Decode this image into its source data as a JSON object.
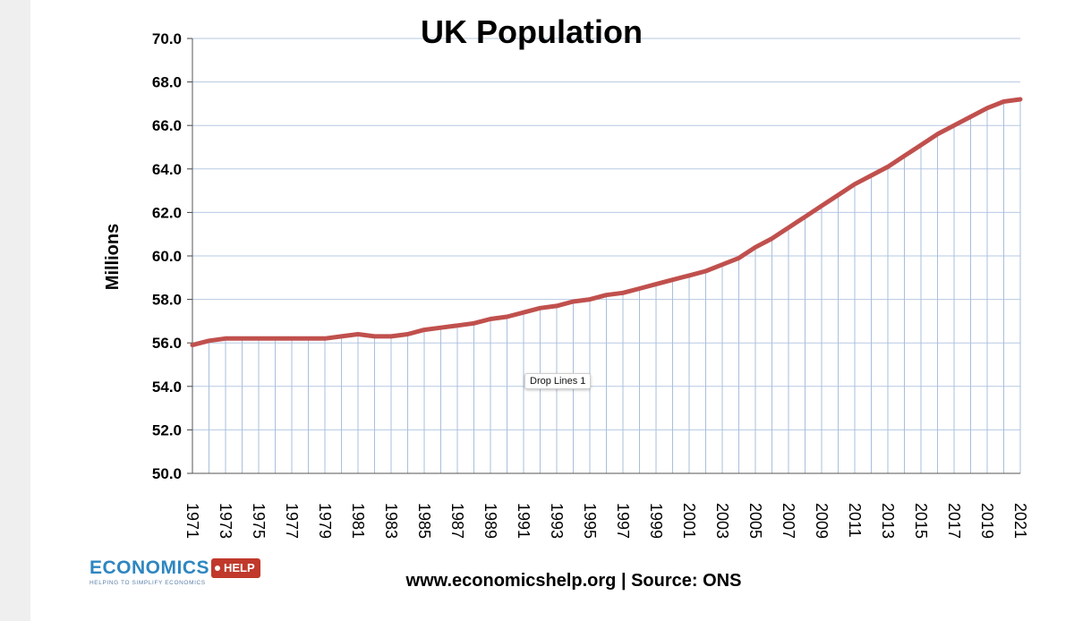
{
  "chart_data": {
    "type": "area",
    "title": "UK Population",
    "ylabel": "Millions",
    "xlabel": "",
    "ylim": [
      50,
      70
    ],
    "yticks": [
      "50.0",
      "52.0",
      "54.0",
      "56.0",
      "58.0",
      "60.0",
      "62.0",
      "64.0",
      "66.0",
      "68.0",
      "70.0"
    ],
    "x": [
      1971,
      1972,
      1973,
      1974,
      1975,
      1976,
      1977,
      1978,
      1979,
      1980,
      1981,
      1982,
      1983,
      1984,
      1985,
      1986,
      1987,
      1988,
      1989,
      1990,
      1991,
      1992,
      1993,
      1994,
      1995,
      1996,
      1997,
      1998,
      1999,
      2000,
      2001,
      2002,
      2003,
      2004,
      2005,
      2006,
      2007,
      2008,
      2009,
      2010,
      2011,
      2012,
      2013,
      2014,
      2015,
      2016,
      2017,
      2018,
      2019,
      2020,
      2021
    ],
    "xticks": [
      "1971",
      "1973",
      "1975",
      "1977",
      "1979",
      "1981",
      "1983",
      "1985",
      "1987",
      "1989",
      "1991",
      "1993",
      "1995",
      "1997",
      "1999",
      "2001",
      "2003",
      "2005",
      "2007",
      "2009",
      "2011",
      "2013",
      "2015",
      "2017",
      "2019",
      "2021"
    ],
    "series": [
      {
        "values": [
          55.9,
          56.1,
          56.2,
          56.2,
          56.2,
          56.2,
          56.2,
          56.2,
          56.2,
          56.3,
          56.4,
          56.3,
          56.3,
          56.4,
          56.6,
          56.7,
          56.8,
          56.9,
          57.1,
          57.2,
          57.4,
          57.6,
          57.7,
          57.9,
          58.0,
          58.2,
          58.3,
          58.5,
          58.7,
          58.9,
          59.1,
          59.3,
          59.6,
          59.9,
          60.4,
          60.8,
          61.3,
          61.8,
          62.3,
          62.8,
          63.3,
          63.7,
          64.1,
          64.6,
          65.1,
          65.6,
          66.0,
          66.4,
          66.8,
          67.1,
          67.2
        ]
      }
    ],
    "drop_lines": true,
    "grid": true,
    "colors": {
      "line": "#c0504d",
      "grid": "#b7c9e2",
      "drop_line": "#a9bfdc"
    }
  },
  "tooltip": {
    "text": "Drop Lines 1"
  },
  "footer": {
    "source": "www.economicshelp.org | Source: ONS"
  },
  "logo": {
    "word": "ECONOMICS",
    "tag": "HELP",
    "tagline": "HELPING TO SIMPLIFY ECONOMICS"
  }
}
